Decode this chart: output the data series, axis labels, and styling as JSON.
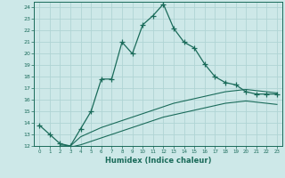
{
  "xlabel": "Humidex (Indice chaleur)",
  "bg_color": "#cde8e8",
  "grid_color": "#b0d4d4",
  "line_color": "#1a6b5a",
  "xlim": [
    -0.5,
    23.5
  ],
  "ylim": [
    12,
    24.5
  ],
  "yticks": [
    12,
    13,
    14,
    15,
    16,
    17,
    18,
    19,
    20,
    21,
    22,
    23,
    24
  ],
  "xticks": [
    0,
    1,
    2,
    3,
    4,
    5,
    6,
    7,
    8,
    9,
    10,
    11,
    12,
    13,
    14,
    15,
    16,
    17,
    18,
    19,
    20,
    21,
    22,
    23
  ],
  "series1_x": [
    0,
    1,
    2,
    3,
    4,
    5,
    6,
    7,
    8,
    9,
    10,
    11,
    12,
    13,
    14,
    15,
    16,
    17,
    18,
    19,
    20,
    21,
    22,
    23
  ],
  "series1_y": [
    13.8,
    13.0,
    12.2,
    12.0,
    13.5,
    15.0,
    17.8,
    17.8,
    21.0,
    20.0,
    22.5,
    23.3,
    24.3,
    22.2,
    21.0,
    20.5,
    19.1,
    18.0,
    17.5,
    17.3,
    16.7,
    16.5,
    16.5,
    16.5
  ],
  "series2_x": [
    2,
    3,
    4,
    5,
    6,
    7,
    8,
    9,
    10,
    11,
    12,
    13,
    14,
    15,
    16,
    17,
    18,
    19,
    20,
    21,
    22,
    23
  ],
  "series2_y": [
    12.1,
    12.0,
    12.8,
    13.2,
    13.6,
    13.9,
    14.2,
    14.5,
    14.8,
    15.1,
    15.4,
    15.7,
    15.9,
    16.1,
    16.3,
    16.5,
    16.7,
    16.8,
    16.9,
    16.8,
    16.7,
    16.6
  ],
  "series3_x": [
    2,
    3,
    4,
    5,
    6,
    7,
    8,
    9,
    10,
    11,
    12,
    13,
    14,
    15,
    16,
    17,
    18,
    19,
    20,
    21,
    22,
    23
  ],
  "series3_y": [
    12.0,
    11.9,
    12.1,
    12.4,
    12.7,
    13.0,
    13.3,
    13.6,
    13.9,
    14.2,
    14.5,
    14.7,
    14.9,
    15.1,
    15.3,
    15.5,
    15.7,
    15.8,
    15.9,
    15.8,
    15.7,
    15.6
  ]
}
